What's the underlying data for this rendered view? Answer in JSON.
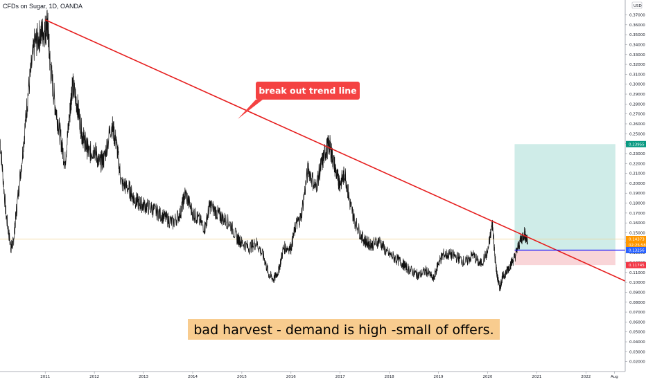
{
  "title": "CFDs on Sugar, 1D, OANDA",
  "currency": "USD",
  "callout": "break out trend line",
  "note": "bad harvest  - demand is high -small of offers.",
  "colors": {
    "trendline": "#e61e1e",
    "callout_bg": "#f44242",
    "breakout": "#1414ff",
    "target_zone": "#cfece8",
    "stop_zone": "#f9d5d8",
    "note_bg": "#f8cc8f",
    "price_tag": "#ff9800",
    "target_tag": "#089981",
    "entry_tag": "#2962ff",
    "stop_tag": "#f23645",
    "price_line": "#f0d28c"
  },
  "chart_data": {
    "type": "line",
    "ylim": [
      0.01,
      0.385
    ],
    "yticks": [
      "0.37000",
      "0.36000",
      "0.35000",
      "0.34000",
      "0.33000",
      "0.32000",
      "0.31000",
      "0.30000",
      "0.29000",
      "0.28000",
      "0.27000",
      "0.26000",
      "0.25000",
      "0.24000",
      "0.23000",
      "0.22000",
      "0.21000",
      "0.20000",
      "0.19000",
      "0.18000",
      "0.17000",
      "0.16000",
      "0.15000",
      "0.14000",
      "0.13000",
      "0.12000",
      "0.11000",
      "0.10000",
      "0.09000",
      "0.08000",
      "0.07000",
      "0.06000",
      "0.05000",
      "0.04000",
      "0.03000",
      "0.02000"
    ],
    "xlim": [
      2010.08,
      2022.8
    ],
    "xticks": [
      {
        "label": "2011",
        "x": 2011.0
      },
      {
        "label": "2012",
        "x": 2012.0
      },
      {
        "label": "2013",
        "x": 2013.0
      },
      {
        "label": "2014",
        "x": 2014.0
      },
      {
        "label": "2015",
        "x": 2015.0
      },
      {
        "label": "2016",
        "x": 2016.0
      },
      {
        "label": "2017",
        "x": 2017.0
      },
      {
        "label": "2018",
        "x": 2018.0
      },
      {
        "label": "2019",
        "x": 2019.0
      },
      {
        "label": "2020",
        "x": 2020.0
      },
      {
        "label": "2021",
        "x": 2021.0
      },
      {
        "label": "2022",
        "x": 2022.0
      },
      {
        "label": "Aug",
        "x": 2022.58
      }
    ],
    "series": [
      {
        "x": [
          2010.08,
          2010.2,
          2010.3,
          2010.35,
          2010.42,
          2010.55,
          2010.65,
          2010.78,
          2010.9,
          2011.0,
          2011.05,
          2011.1,
          2011.2,
          2011.3,
          2011.4,
          2011.5,
          2011.55,
          2011.65,
          2011.75,
          2011.82,
          2011.9,
          2012.0,
          2012.1,
          2012.2,
          2012.35,
          2012.45,
          2012.55,
          2012.7,
          2012.8,
          2012.9,
          2013.0,
          2013.15,
          2013.3,
          2013.45,
          2013.6,
          2013.75,
          2013.85,
          2014.0,
          2014.1,
          2014.25,
          2014.35,
          2014.5,
          2014.6,
          2014.75,
          2014.9,
          2015.0,
          2015.15,
          2015.3,
          2015.45,
          2015.55,
          2015.65,
          2015.75,
          2015.85,
          2016.0,
          2016.1,
          2016.2,
          2016.35,
          2016.5,
          2016.6,
          2016.7,
          2016.78,
          2016.85,
          2016.95,
          2017.0,
          2017.1,
          2017.2,
          2017.3,
          2017.45,
          2017.55,
          2017.65,
          2017.8,
          2017.95,
          2018.1,
          2018.25,
          2018.35,
          2018.5,
          2018.6,
          2018.75,
          2018.9,
          2019.0,
          2019.1,
          2019.25,
          2019.4,
          2019.55,
          2019.7,
          2019.85,
          2020.0,
          2020.1,
          2020.15,
          2020.2,
          2020.25,
          2020.3,
          2020.38,
          2020.45,
          2020.55,
          2020.65,
          2020.75,
          2020.82
        ],
        "y": [
          0.245,
          0.17,
          0.135,
          0.14,
          0.175,
          0.235,
          0.29,
          0.34,
          0.35,
          0.355,
          0.36,
          0.32,
          0.28,
          0.25,
          0.22,
          0.27,
          0.3,
          0.28,
          0.25,
          0.24,
          0.23,
          0.235,
          0.22,
          0.225,
          0.26,
          0.24,
          0.2,
          0.195,
          0.185,
          0.18,
          0.178,
          0.175,
          0.17,
          0.165,
          0.16,
          0.17,
          0.19,
          0.17,
          0.165,
          0.155,
          0.178,
          0.17,
          0.165,
          0.16,
          0.145,
          0.14,
          0.135,
          0.14,
          0.125,
          0.108,
          0.103,
          0.112,
          0.135,
          0.135,
          0.158,
          0.165,
          0.215,
          0.195,
          0.215,
          0.232,
          0.24,
          0.225,
          0.205,
          0.2,
          0.21,
          0.18,
          0.162,
          0.145,
          0.14,
          0.138,
          0.142,
          0.13,
          0.125,
          0.12,
          0.115,
          0.11,
          0.107,
          0.112,
          0.103,
          0.12,
          0.128,
          0.128,
          0.125,
          0.12,
          0.128,
          0.118,
          0.13,
          0.16,
          0.125,
          0.105,
          0.094,
          0.105,
          0.11,
          0.117,
          0.125,
          0.14,
          0.15,
          0.14
        ]
      }
    ],
    "trendline": {
      "x1": 2011.0,
      "y1": 0.365,
      "x2": 2022.95,
      "y2": 0.098
    },
    "target": 0.23955,
    "entry": 0.13256,
    "stop": 0.11745,
    "current_price": 0.14373,
    "countdown": "02:25:58",
    "position_box": {
      "x1": 2020.55,
      "x2": 2022.6
    }
  }
}
